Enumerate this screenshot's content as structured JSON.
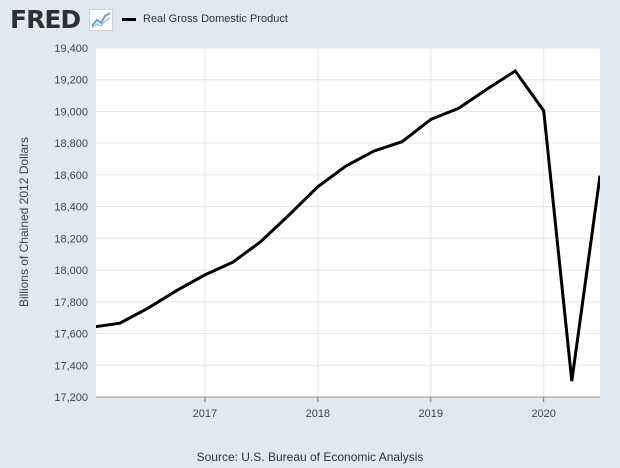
{
  "app": {
    "logo_text": "FRED",
    "logo_icon": "line-chart-icon"
  },
  "legend": {
    "label": "Real Gross Domestic Product"
  },
  "source": "Source: U.S. Bureau of Economic Analysis",
  "colors": {
    "background": "#e1e9f0",
    "plot_background": "#ffffff",
    "line": "#000000",
    "grid": "#e6e6e6"
  },
  "chart_data": {
    "type": "line",
    "title": "",
    "xlabel": "",
    "ylabel": "Billions of Chained 2012 Dollars",
    "ylim": [
      17200,
      19400
    ],
    "yticks": [
      17200,
      17400,
      17600,
      17800,
      18000,
      18200,
      18400,
      18600,
      18800,
      19000,
      19200,
      19400
    ],
    "ytick_labels": [
      "17,200",
      "17,400",
      "17,600",
      "17,800",
      "18,000",
      "18,200",
      "18,400",
      "18,600",
      "18,800",
      "19,000",
      "19,200",
      "19,400"
    ],
    "xlim": [
      "2016-01-15",
      "2020-07-01"
    ],
    "xticks": [
      "2017-01-01",
      "2018-01-01",
      "2019-01-01",
      "2020-01-01"
    ],
    "xtick_labels": [
      "2017",
      "2018",
      "2019",
      "2020"
    ],
    "grid": true,
    "series": [
      {
        "name": "Real Gross Domestic Product",
        "x": [
          "2016-01-01",
          "2016-04-01",
          "2016-07-01",
          "2016-10-01",
          "2017-01-01",
          "2017-04-01",
          "2017-07-01",
          "2017-10-01",
          "2018-01-01",
          "2018-04-01",
          "2018-07-01",
          "2018-10-01",
          "2019-01-01",
          "2019-04-01",
          "2019-07-01",
          "2019-10-01",
          "2020-01-01",
          "2020-04-01",
          "2020-07-01"
        ],
        "y": [
          17640,
          17665,
          17760,
          17870,
          17970,
          18050,
          18180,
          18350,
          18525,
          18655,
          18750,
          18810,
          18950,
          19020,
          19140,
          19255,
          19005,
          17300,
          18595
        ]
      }
    ]
  }
}
